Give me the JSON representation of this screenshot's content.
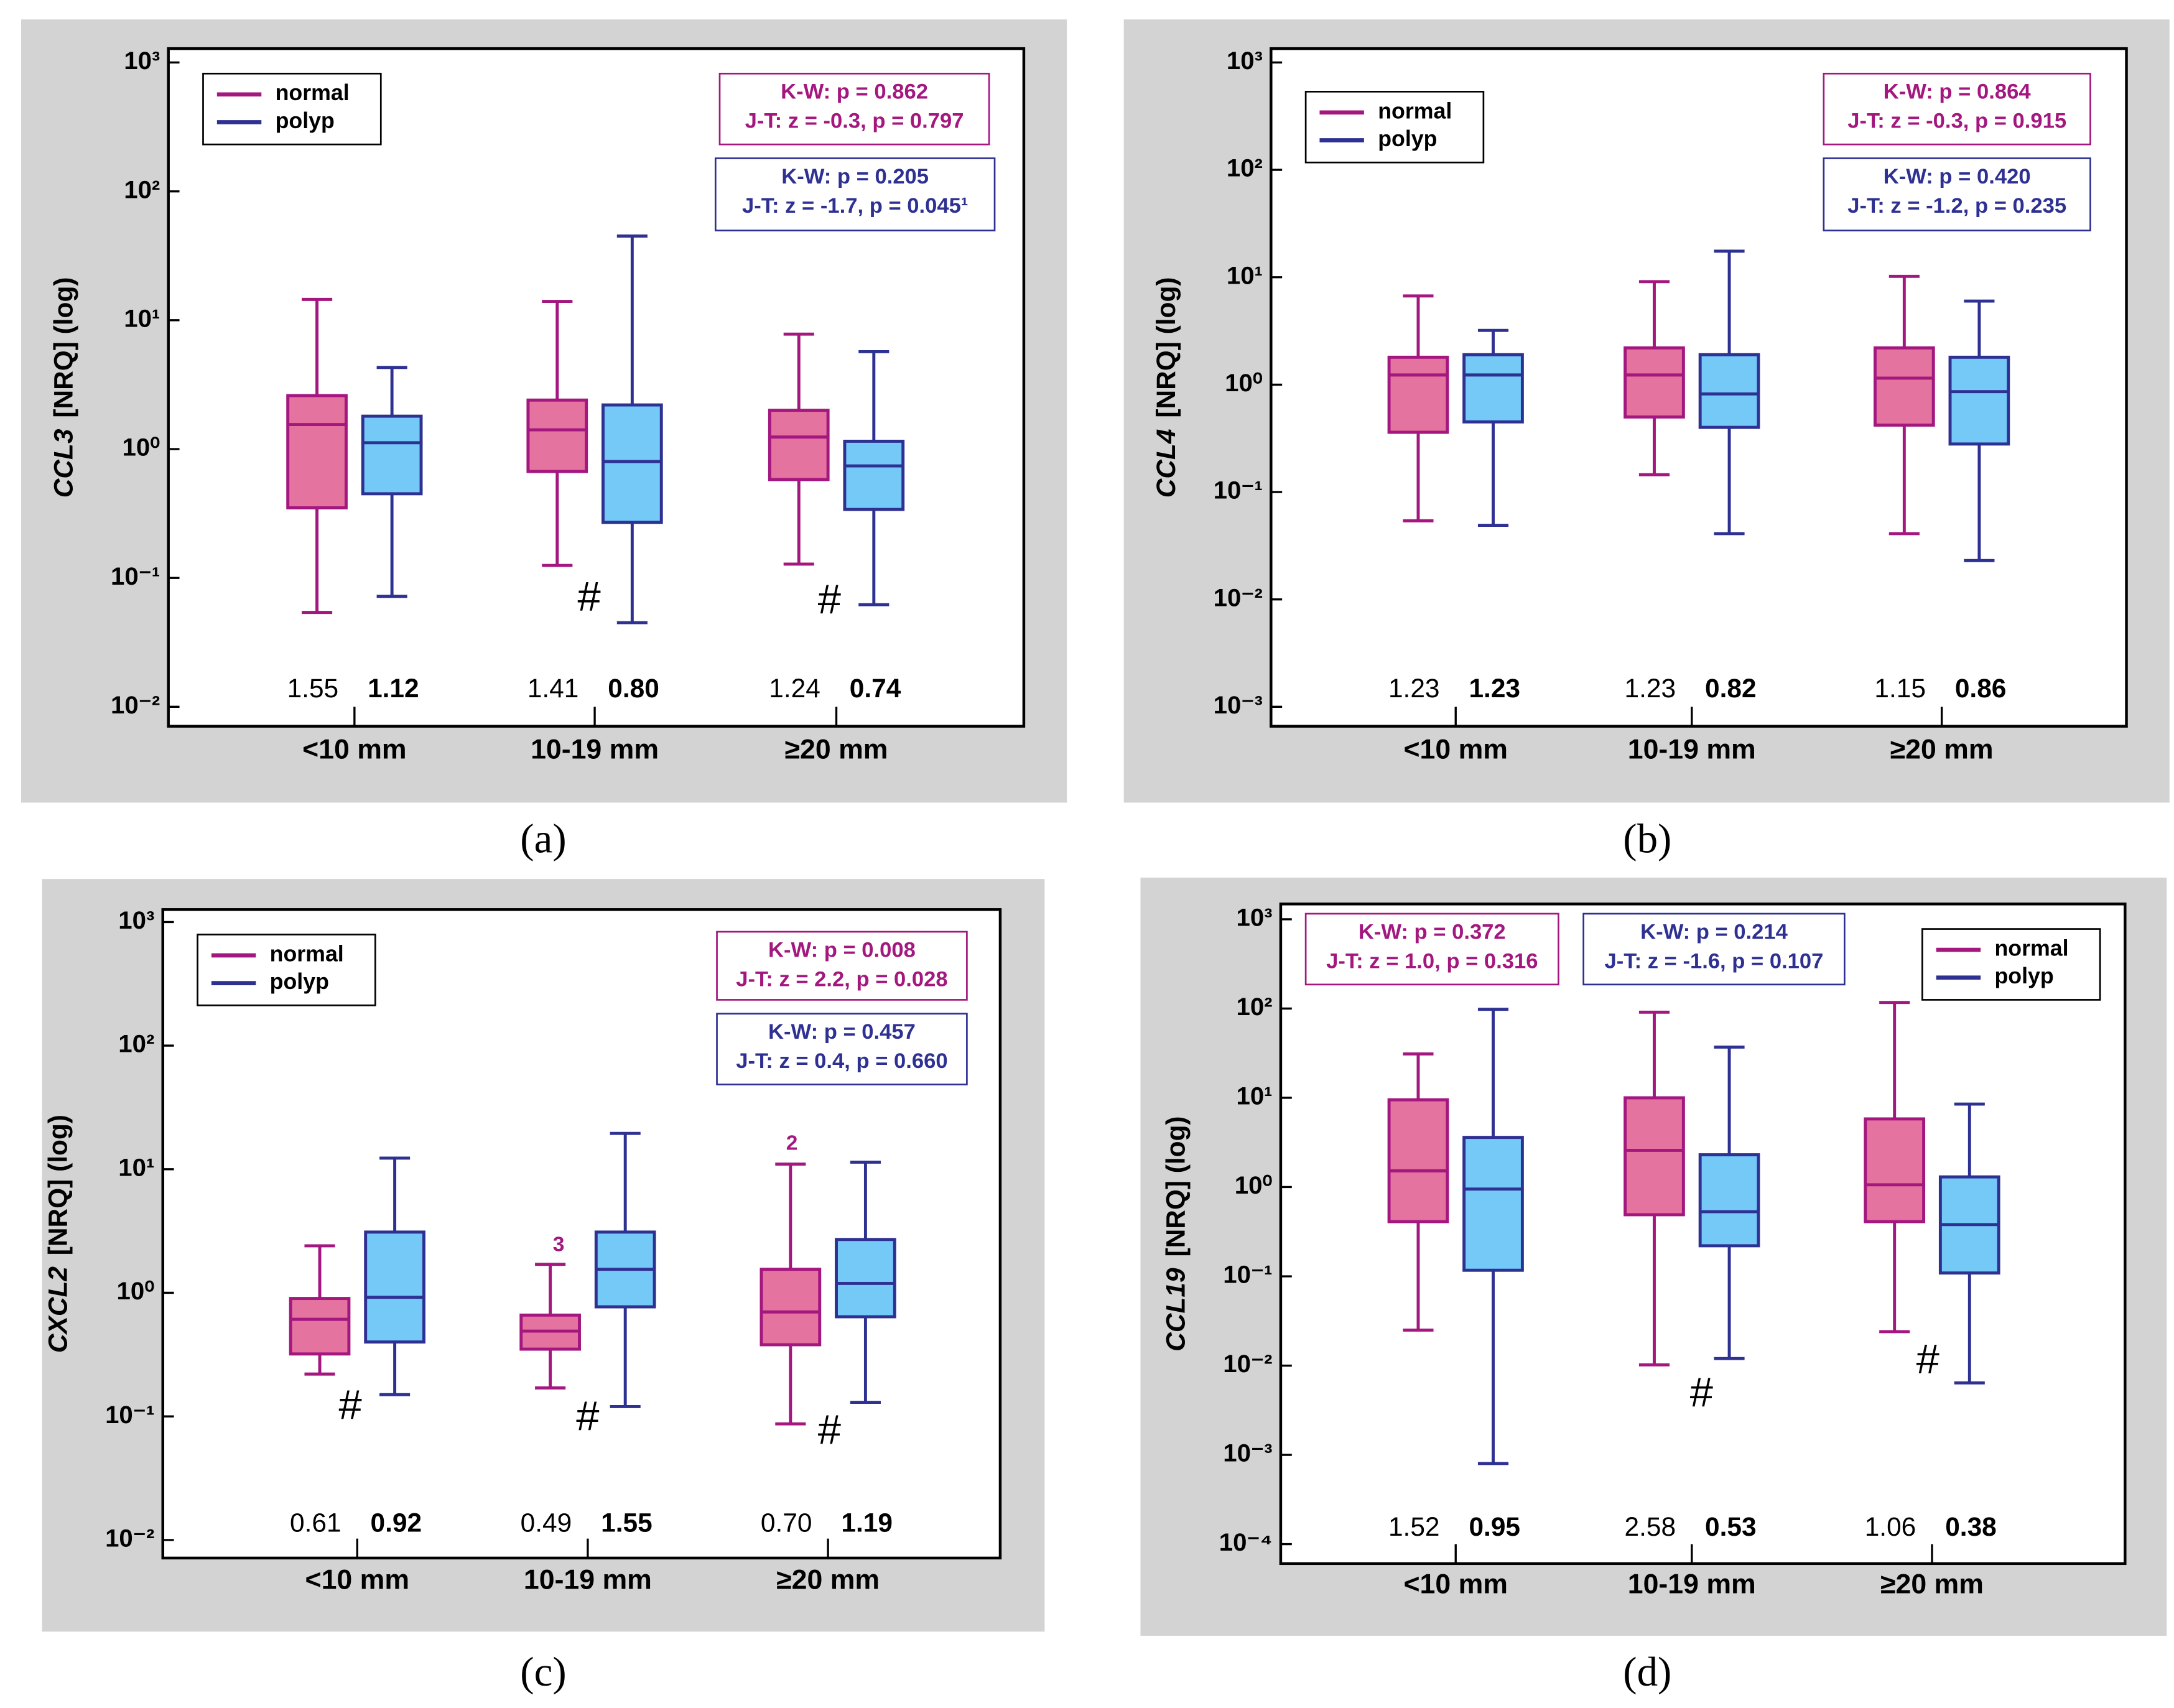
{
  "chart_data": [
    {
      "type": "box",
      "label": "(a)",
      "ylabel_gene": "CCL3",
      "ylabel": "[NRQ] (log)",
      "log_y": true,
      "legend": "upper left",
      "categories": [
        "<10 mm",
        "10-19 mm",
        "≥20 mm"
      ],
      "ylim": [
        0.01,
        1000
      ],
      "yticks": [
        {
          "value": 0.01,
          "label": "10⁻²"
        },
        {
          "value": 0.1,
          "label": "10⁻¹"
        },
        {
          "value": 1,
          "label": "10⁰"
        },
        {
          "value": 10,
          "label": "10¹"
        },
        {
          "value": 100,
          "label": "10²"
        },
        {
          "value": 1000,
          "label": "10³"
        }
      ],
      "series": [
        {
          "name": "normal",
          "color": "#a3177f",
          "fill": "#e4739f",
          "min": [
            0.054,
            0.125,
            0.128
          ],
          "q1": [
            0.35,
            0.67,
            0.58
          ],
          "median": [
            1.55,
            1.41,
            1.24
          ],
          "q3": [
            2.6,
            2.4,
            2.0
          ],
          "max": [
            14.5,
            14,
            7.8
          ],
          "median_labels": [
            "1.55",
            "1.41",
            "1.24"
          ],
          "stats": [
            "K-W: p = 0.862",
            "J-T: z = -0.3, p = 0.797"
          ]
        },
        {
          "name": "polyp",
          "color": "#2e3192",
          "fill": "#74c9f7",
          "min": [
            0.072,
            0.045,
            0.062
          ],
          "q1": [
            0.45,
            0.27,
            0.34
          ],
          "median": [
            1.12,
            0.8,
            0.74
          ],
          "q3": [
            1.8,
            2.2,
            1.15
          ],
          "max": [
            4.3,
            45,
            5.7
          ],
          "median_labels": [
            "1.12",
            "0.80",
            "0.74"
          ],
          "stats": [
            "K-W: p = 0.205",
            "J-T: z = -1.7, p = 0.045¹"
          ]
        }
      ],
      "annotations": [
        "#",
        "#"
      ]
    },
    {
      "type": "box",
      "label": "(b)",
      "ylabel_gene": "CCL4",
      "ylabel": "[NRQ] (log)",
      "log_y": true,
      "legend": "upper left",
      "categories": [
        "<10 mm",
        "10-19 mm",
        "≥20 mm"
      ],
      "ylim": [
        0.001,
        1000
      ],
      "yticks": [
        {
          "value": 0.001,
          "label": "10⁻³"
        },
        {
          "value": 0.01,
          "label": "10⁻²"
        },
        {
          "value": 0.1,
          "label": "10⁻¹"
        },
        {
          "value": 1,
          "label": "10⁰"
        },
        {
          "value": 10,
          "label": "10¹"
        },
        {
          "value": 100,
          "label": "10²"
        },
        {
          "value": 1000,
          "label": "10³"
        }
      ],
      "series": [
        {
          "name": "normal",
          "color": "#a3177f",
          "fill": "#e4739f",
          "min": [
            0.054,
            0.145,
            0.041
          ],
          "q1": [
            0.36,
            0.5,
            0.42
          ],
          "median": [
            1.23,
            1.23,
            1.15
          ],
          "q3": [
            1.8,
            2.2,
            2.2
          ],
          "max": [
            6.7,
            9.1,
            10.2
          ],
          "median_labels": [
            "1.23",
            "1.23",
            "1.15"
          ],
          "stats": [
            "K-W: p = 0.864",
            "J-T: z = -0.3, p = 0.915"
          ]
        },
        {
          "name": "polyp",
          "color": "#2e3192",
          "fill": "#74c9f7",
          "min": [
            0.049,
            0.041,
            0.023
          ],
          "q1": [
            0.45,
            0.4,
            0.28
          ],
          "median": [
            1.23,
            0.82,
            0.86
          ],
          "q3": [
            1.9,
            1.9,
            1.8
          ],
          "max": [
            3.2,
            17.5,
            6
          ],
          "median_labels": [
            "1.23",
            "0.82",
            "0.86"
          ],
          "stats": [
            "K-W: p = 0.420",
            "J-T: z = -1.2, p = 0.235"
          ]
        }
      ],
      "annotations": []
    },
    {
      "type": "box",
      "label": "(c)",
      "ylabel_gene": "CXCL2",
      "ylabel": "[NRQ] (log)",
      "log_y": true,
      "legend": "upper left",
      "categories": [
        "<10 mm",
        "10-19 mm",
        "≥20 mm"
      ],
      "ylim": [
        0.01,
        1000
      ],
      "yticks": [
        {
          "value": 0.01,
          "label": "10⁻²"
        },
        {
          "value": 0.1,
          "label": "10⁻¹"
        },
        {
          "value": 1,
          "label": "10⁰"
        },
        {
          "value": 10,
          "label": "10¹"
        },
        {
          "value": 100,
          "label": "10²"
        },
        {
          "value": 1000,
          "label": "10³"
        }
      ],
      "series": [
        {
          "name": "normal",
          "color": "#a3177f",
          "fill": "#e4739f",
          "min": [
            0.22,
            0.17,
            0.087
          ],
          "q1": [
            0.32,
            0.35,
            0.38
          ],
          "median": [
            0.61,
            0.49,
            0.7
          ],
          "q3": [
            0.9,
            0.66,
            1.55
          ],
          "max": [
            2.4,
            1.7,
            11
          ],
          "median_labels": [
            "0.61",
            "0.49",
            "0.70"
          ],
          "stats": [
            "K-W: p = 0.008",
            "J-T: z = 2.2, p = 0.028"
          ]
        },
        {
          "name": "polyp",
          "color": "#2e3192",
          "fill": "#74c9f7",
          "min": [
            0.15,
            0.12,
            0.13
          ],
          "q1": [
            0.4,
            0.77,
            0.64
          ],
          "median": [
            0.92,
            1.55,
            1.19
          ],
          "q3": [
            3.1,
            3.1,
            2.7
          ],
          "max": [
            12.3,
            19.5,
            11.4
          ],
          "median_labels": [
            "0.92",
            "1.55",
            "1.19"
          ],
          "stats": [
            "K-W: p = 0.457",
            "J-T: z = 0.4, p = 0.660"
          ]
        }
      ],
      "annotations": [
        "#",
        "#",
        "#",
        "3",
        "2"
      ]
    },
    {
      "type": "box",
      "label": "(d)",
      "ylabel_gene": "CCL19",
      "ylabel": "[NRQ] (log)",
      "log_y": true,
      "legend": "upper right",
      "categories": [
        "<10 mm",
        "10-19 mm",
        "≥20 mm"
      ],
      "ylim": [
        0.0001,
        1000
      ],
      "yticks": [
        {
          "value": 0.0001,
          "label": "10⁻⁴"
        },
        {
          "value": 0.001,
          "label": "10⁻³"
        },
        {
          "value": 0.01,
          "label": "10⁻²"
        },
        {
          "value": 0.1,
          "label": "10⁻¹"
        },
        {
          "value": 1,
          "label": "10⁰"
        },
        {
          "value": 10,
          "label": "10¹"
        },
        {
          "value": 100,
          "label": "10²"
        },
        {
          "value": 1000,
          "label": "10³"
        }
      ],
      "series": [
        {
          "name": "normal",
          "color": "#a3177f",
          "fill": "#e4739f",
          "min": [
            0.025,
            0.0102,
            0.024
          ],
          "q1": [
            0.41,
            0.49,
            0.41
          ],
          "median": [
            1.52,
            2.58,
            1.06
          ],
          "q3": [
            9.5,
            10,
            5.8
          ],
          "max": [
            31,
            91,
            117
          ],
          "median_labels": [
            "1.52",
            "2.58",
            "1.06"
          ],
          "stats": [
            "K-W: p = 0.372",
            "J-T: z = 1.0, p = 0.316"
          ]
        },
        {
          "name": "polyp",
          "color": "#2e3192",
          "fill": "#74c9f7",
          "min": [
            0.0008,
            0.012,
            0.0064
          ],
          "q1": [
            0.117,
            0.22,
            0.109
          ],
          "median": [
            0.95,
            0.53,
            0.38
          ],
          "q3": [
            3.6,
            2.3,
            1.3
          ],
          "max": [
            98,
            37,
            8.5
          ],
          "median_labels": [
            "0.95",
            "0.53",
            "0.38"
          ],
          "stats": [
            "K-W: p = 0.214",
            "J-T: z = -1.6, p = 0.107"
          ]
        }
      ],
      "annotations": [
        "#",
        "#"
      ]
    }
  ]
}
